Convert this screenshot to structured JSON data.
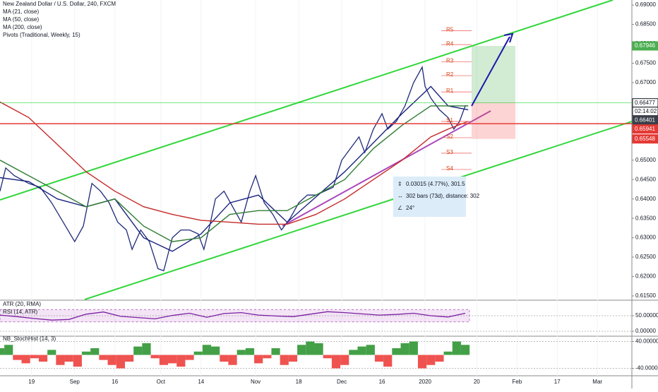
{
  "chart_data": [
    {
      "type": "line",
      "title": "New Zealand Dollar / U.S. Dollar, 240, FXCM",
      "legend": [
        "Pivots (Traditional, Weekly, 15)"
      ],
      "color": "#1e2a78",
      "x": [
        0,
        2,
        5,
        10,
        14,
        18,
        22,
        26,
        29,
        32,
        35,
        38,
        41,
        44,
        46,
        49,
        52,
        55,
        57,
        60,
        63,
        66,
        69,
        71,
        73,
        75,
        78,
        81,
        84,
        87,
        89,
        92,
        95,
        98,
        101,
        104,
        107,
        110,
        113,
        116,
        119,
        122,
        125,
        127,
        130,
        133,
        135,
        138,
        141,
        144,
        147,
        148,
        150,
        153,
        156,
        158,
        160,
        162,
        163
      ],
      "values": [
        0.642,
        0.648,
        0.646,
        0.644,
        0.643,
        0.639,
        0.634,
        0.629,
        0.633,
        0.644,
        0.642,
        0.639,
        0.634,
        0.632,
        0.627,
        0.632,
        0.629,
        0.622,
        0.6215,
        0.63,
        0.632,
        0.632,
        0.631,
        0.627,
        0.633,
        0.64,
        0.642,
        0.638,
        0.634,
        0.642,
        0.646,
        0.639,
        0.636,
        0.632,
        0.635,
        0.639,
        0.641,
        0.641,
        0.642,
        0.643,
        0.65,
        0.653,
        0.656,
        0.652,
        0.658,
        0.662,
        0.658,
        0.66,
        0.664,
        0.67,
        0.674,
        0.669,
        0.666,
        0.663,
        0.661,
        0.658,
        0.66,
        0.664,
        0.664
      ],
      "series": [
        {
          "name": "MA (21, close)",
          "color": "#1a237e",
          "x": [
            0,
            10,
            20,
            30,
            40,
            50,
            60,
            70,
            80,
            90,
            100,
            110,
            120,
            130,
            140,
            150,
            156,
            163
          ],
          "values": [
            0.6455,
            0.6445,
            0.64,
            0.638,
            0.64,
            0.63,
            0.6265,
            0.631,
            0.639,
            0.641,
            0.634,
            0.6405,
            0.647,
            0.6545,
            0.662,
            0.669,
            0.664,
            0.663
          ]
        },
        {
          "name": "MA (50, close)",
          "color": "#2e7d32",
          "x": [
            0,
            10,
            20,
            30,
            40,
            50,
            60,
            70,
            80,
            90,
            100,
            110,
            120,
            130,
            140,
            150,
            156,
            163
          ],
          "values": [
            0.65,
            0.646,
            0.642,
            0.638,
            0.64,
            0.633,
            0.629,
            0.63,
            0.636,
            0.637,
            0.637,
            0.641,
            0.645,
            0.653,
            0.659,
            0.664,
            0.664,
            0.664
          ]
        },
        {
          "name": "MA (200, close)",
          "color": "#c62828",
          "x": [
            0,
            10,
            20,
            30,
            40,
            50,
            60,
            70,
            80,
            90,
            100,
            110,
            120,
            130,
            140,
            150,
            156,
            163
          ],
          "values": [
            0.665,
            0.661,
            0.654,
            0.647,
            0.642,
            0.638,
            0.636,
            0.6345,
            0.634,
            0.6335,
            0.6335,
            0.636,
            0.64,
            0.645,
            0.65,
            0.656,
            0.658,
            0.66
          ]
        }
      ],
      "xlim": [
        0,
        220
      ],
      "xticks": [
        {
          "value": 11,
          "label": "19"
        },
        {
          "value": 26,
          "label": "Sep"
        },
        {
          "value": 40,
          "label": "16"
        },
        {
          "value": 56,
          "label": "Oct"
        },
        {
          "value": 70,
          "label": "14"
        },
        {
          "value": 89,
          "label": "Nov"
        },
        {
          "value": 104,
          "label": "18"
        },
        {
          "value": 119,
          "label": "Dec"
        },
        {
          "value": 133,
          "label": "16"
        },
        {
          "value": 148,
          "label": "2020"
        },
        {
          "value": 166,
          "label": "20"
        },
        {
          "value": 180,
          "label": "Feb"
        },
        {
          "value": 194,
          "label": "17"
        },
        {
          "value": 208,
          "label": "Mar"
        }
      ],
      "ylim": [
        0.6139,
        0.6913
      ],
      "yticks": [
        {
          "value": 0.69,
          "label": "0.69000"
        },
        {
          "value": 0.685,
          "label": "0.68500"
        },
        {
          "value": 0.68,
          "label": "0.68000"
        },
        {
          "value": 0.675,
          "label": "0.67500"
        },
        {
          "value": 0.67,
          "label": "0.67000"
        },
        {
          "value": 0.665,
          "label": "0.66500"
        },
        {
          "value": 0.66,
          "label": "0.66000"
        },
        {
          "value": 0.655,
          "label": "0.65500"
        },
        {
          "value": 0.65,
          "label": "0.65000"
        },
        {
          "value": 0.645,
          "label": "0.64500"
        },
        {
          "value": 0.64,
          "label": "0.64000"
        },
        {
          "value": 0.635,
          "label": "0.63500"
        },
        {
          "value": 0.63,
          "label": "0.63000"
        },
        {
          "value": 0.625,
          "label": "0.62500"
        },
        {
          "value": 0.62,
          "label": "0.62000"
        },
        {
          "value": 0.615,
          "label": "0.61500"
        }
      ],
      "grid": true,
      "price_tags": [
        {
          "value": 0.67946,
          "label": "0.67946",
          "color": "#4caf50"
        },
        {
          "value": 0.66477,
          "label": "0.66477",
          "color": "#ffffff",
          "countdown": "02:14:02"
        },
        {
          "value": 0.66401,
          "label": "0.66401",
          "color": "#3b3f4a"
        },
        {
          "value": 0.65941,
          "label": "0.65941",
          "color": "#e53935"
        },
        {
          "value": 0.65548,
          "label": "0.65548",
          "color": "#e53935"
        }
      ],
      "pivots": [
        {
          "label": "R5",
          "value": 0.6834
        },
        {
          "label": "R4",
          "value": 0.6798
        },
        {
          "label": "R3",
          "value": 0.6754
        },
        {
          "label": "R2",
          "value": 0.6718
        },
        {
          "label": "R1",
          "value": 0.6676
        },
        {
          "label": "S1",
          "value": 0.66
        },
        {
          "label": "S2",
          "value": 0.6558
        },
        {
          "label": "S3",
          "value": 0.6518
        },
        {
          "label": "S4",
          "value": 0.6476
        }
      ],
      "measure": [
        "0.03015 (4.77%), 301.5",
        "302 bars (73d), distance: 302",
        "24°"
      ]
    },
    {
      "type": "line",
      "legend": [
        "ATR (20, RMA)",
        "RSI (14, ATR)"
      ],
      "color": "#7b1fa2",
      "x": [
        0,
        6,
        12,
        18,
        24,
        30,
        36,
        42,
        48,
        54,
        60,
        66,
        72,
        78,
        84,
        90,
        96,
        102,
        108,
        114,
        120,
        126,
        132,
        138,
        144,
        150,
        156,
        162
      ],
      "values": [
        52,
        47,
        41,
        36,
        38,
        55,
        62,
        48,
        44,
        40,
        51,
        58,
        45,
        57,
        60,
        52,
        49,
        47,
        55,
        63,
        60,
        56,
        52,
        54,
        58,
        50,
        46,
        58
      ],
      "ylim": [
        0,
        100
      ],
      "yticks": [
        {
          "value": 50,
          "label": "50.00000"
        },
        {
          "value": 0,
          "label": "0.00000"
        }
      ],
      "band": [
        30,
        70
      ]
    },
    {
      "type": "bar",
      "legend": [
        "NB_StochHist (14, 3)"
      ],
      "positive_color": "#43a047",
      "negative_color": "#ef5350",
      "x": [
        0,
        3,
        6,
        9,
        12,
        15,
        18,
        21,
        24,
        27,
        30,
        33,
        36,
        39,
        42,
        45,
        48,
        51,
        54,
        57,
        60,
        63,
        66,
        69,
        72,
        75,
        78,
        81,
        84,
        87,
        90,
        93,
        96,
        99,
        102,
        105,
        108,
        111,
        114,
        117,
        120,
        123,
        126,
        129,
        132,
        135,
        138,
        141,
        144,
        147,
        150,
        153,
        156,
        159,
        162
      ],
      "values": [
        20,
        30,
        -15,
        -25,
        -10,
        -20,
        15,
        -30,
        -20,
        -35,
        10,
        20,
        -15,
        -30,
        -40,
        -20,
        25,
        35,
        -10,
        -30,
        -25,
        -35,
        -15,
        10,
        30,
        25,
        -20,
        -30,
        15,
        20,
        -25,
        -10,
        20,
        -30,
        -20,
        30,
        40,
        35,
        -10,
        -40,
        -30,
        15,
        25,
        30,
        -20,
        -35,
        20,
        35,
        40,
        -40,
        -30,
        -20,
        10,
        40,
        30
      ],
      "ylim": [
        -60,
        60
      ],
      "yticks": [
        {
          "value": 40,
          "label": "40.00000"
        },
        {
          "value": -40,
          "label": "-40.00000"
        }
      ]
    }
  ]
}
